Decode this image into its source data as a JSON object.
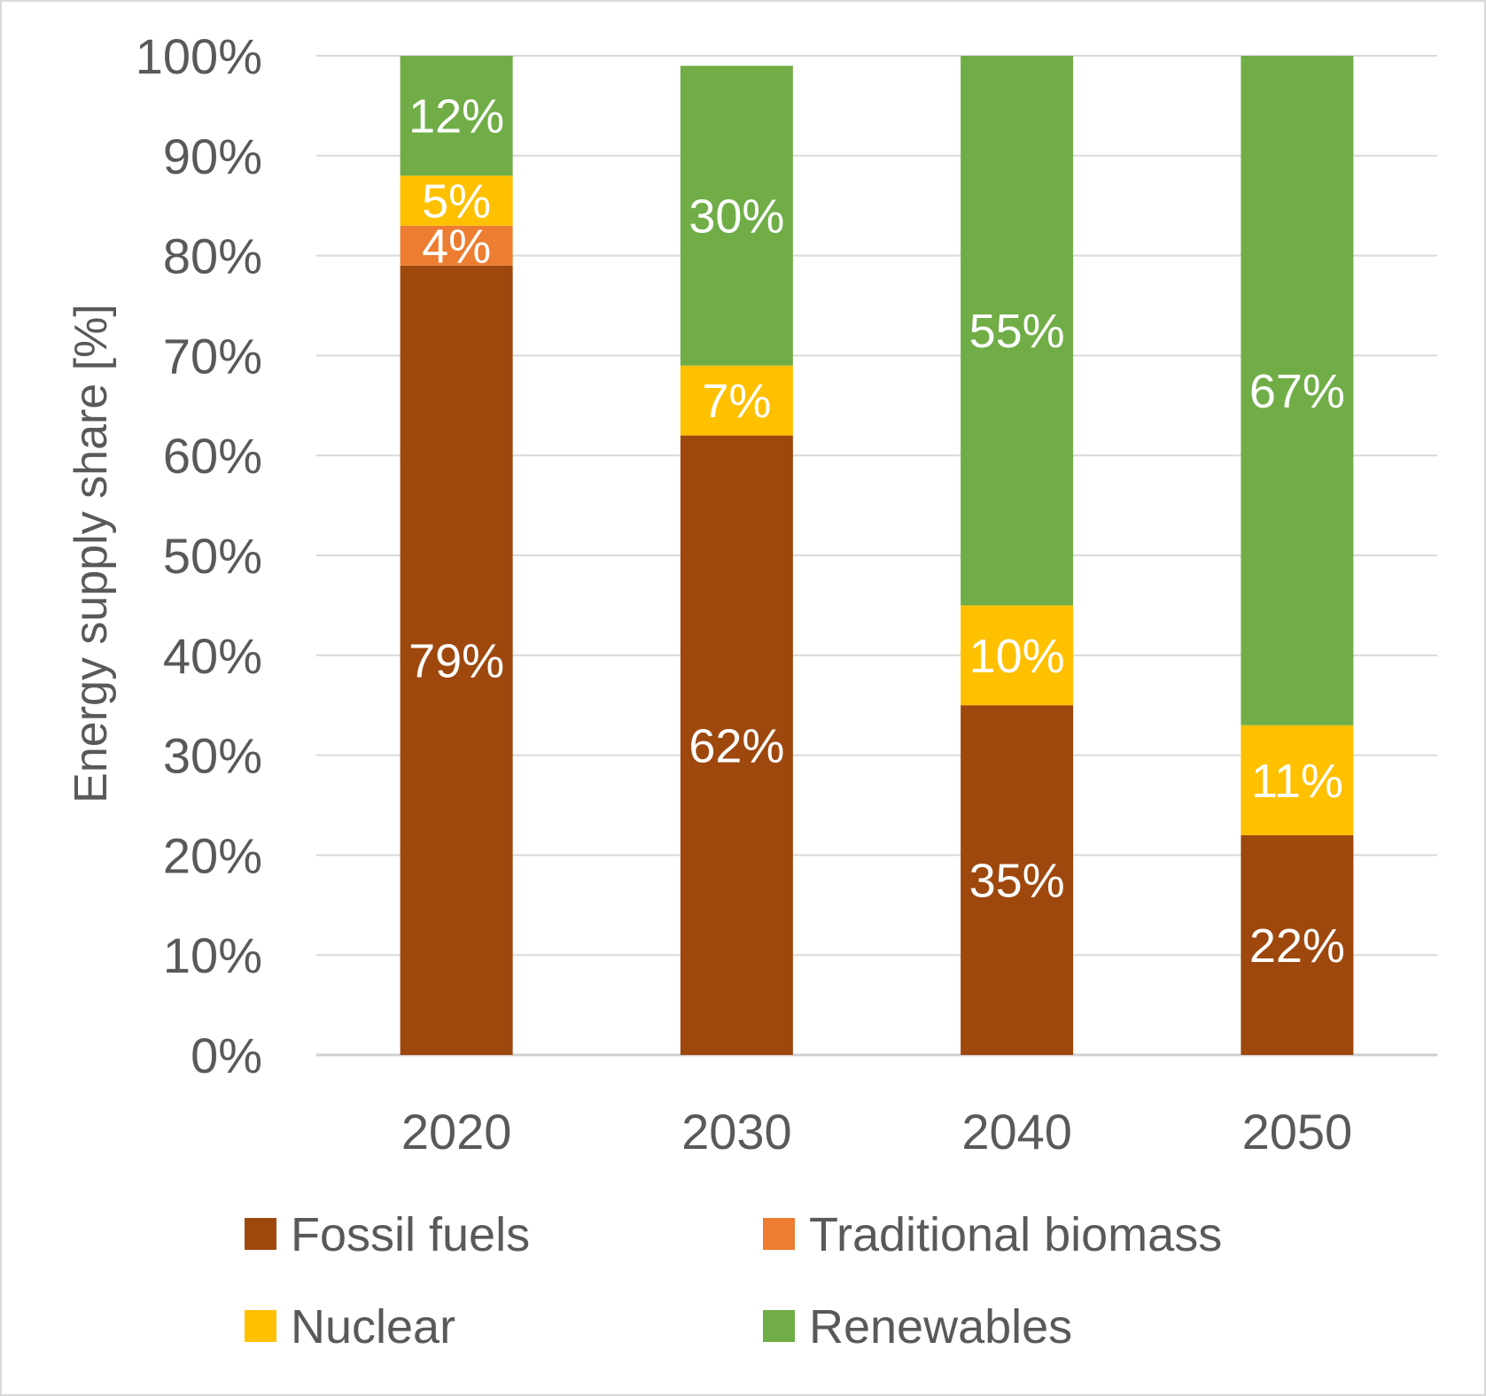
{
  "chart_data": {
    "type": "bar",
    "stacked": true,
    "categories": [
      "2020",
      "2030",
      "2040",
      "2050"
    ],
    "ylabel": "Energy supply share [%]",
    "xlabel": "",
    "ylim": [
      0,
      100
    ],
    "yticks": [
      "0%",
      "10%",
      "20%",
      "30%",
      "40%",
      "50%",
      "60%",
      "70%",
      "80%",
      "90%",
      "100%"
    ],
    "grid": true,
    "legend_position": "bottom",
    "series": [
      {
        "name": "Fossil fuels",
        "color": "#9E480E",
        "values": [
          79,
          62,
          35,
          22
        ],
        "labels": [
          "79%",
          "62%",
          "35%",
          "22%"
        ]
      },
      {
        "name": "Traditional biomass",
        "color": "#ED7D31",
        "values": [
          4,
          0,
          0,
          0
        ],
        "labels": [
          "4%",
          "",
          "",
          ""
        ]
      },
      {
        "name": "Nuclear",
        "color": "#FFC000",
        "values": [
          5,
          7,
          10,
          11
        ],
        "labels": [
          "5%",
          "7%",
          "10%",
          "11%"
        ]
      },
      {
        "name": "Renewables",
        "color": "#70AD47",
        "values": [
          12,
          30,
          55,
          67
        ],
        "labels": [
          "12%",
          "30%",
          "55%",
          "67%"
        ]
      }
    ],
    "legend_order": [
      0,
      1,
      2,
      3
    ]
  }
}
